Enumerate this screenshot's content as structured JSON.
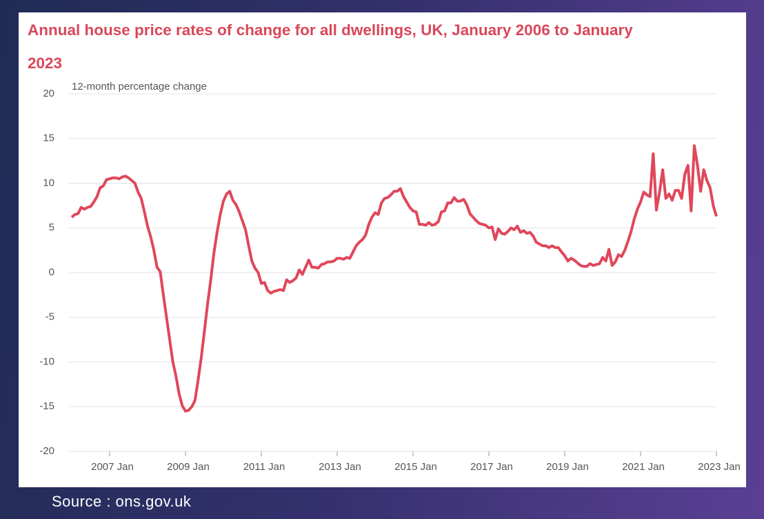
{
  "chart_data": {
    "type": "line",
    "title": "Annual house price rates of change for all dwellings, UK, January 2006 to January 2023",
    "y_label": "12-month percentage change",
    "source": "Source : ons.gov.uk",
    "x": [
      "2006 Jan",
      "2006 Feb",
      "2006 Mar",
      "2006 Apr",
      "2006 May",
      "2006 Jun",
      "2006 Jul",
      "2006 Aug",
      "2006 Sep",
      "2006 Oct",
      "2006 Nov",
      "2006 Dec",
      "2007 Jan",
      "2007 Feb",
      "2007 Mar",
      "2007 Apr",
      "2007 May",
      "2007 Jun",
      "2007 Jul",
      "2007 Aug",
      "2007 Sep",
      "2007 Oct",
      "2007 Nov",
      "2007 Dec",
      "2008 Jan",
      "2008 Feb",
      "2008 Mar",
      "2008 Apr",
      "2008 May",
      "2008 Jun",
      "2008 Jul",
      "2008 Aug",
      "2008 Sep",
      "2008 Oct",
      "2008 Nov",
      "2008 Dec",
      "2009 Jan",
      "2009 Feb",
      "2009 Mar",
      "2009 Apr",
      "2009 May",
      "2009 Jun",
      "2009 Jul",
      "2009 Aug",
      "2009 Sep",
      "2009 Oct",
      "2009 Nov",
      "2009 Dec",
      "2010 Jan",
      "2010 Feb",
      "2010 Mar",
      "2010 Apr",
      "2010 May",
      "2010 Jun",
      "2010 Jul",
      "2010 Aug",
      "2010 Sep",
      "2010 Oct",
      "2010 Nov",
      "2010 Dec",
      "2011 Jan",
      "2011 Feb",
      "2011 Mar",
      "2011 Apr",
      "2011 May",
      "2011 Jun",
      "2011 Jul",
      "2011 Aug",
      "2011 Sep",
      "2011 Oct",
      "2011 Nov",
      "2011 Dec",
      "2012 Jan",
      "2012 Feb",
      "2012 Mar",
      "2012 Apr",
      "2012 May",
      "2012 Jun",
      "2012 Jul",
      "2012 Aug",
      "2012 Sep",
      "2012 Oct",
      "2012 Nov",
      "2012 Dec",
      "2013 Jan",
      "2013 Feb",
      "2013 Mar",
      "2013 Apr",
      "2013 May",
      "2013 Jun",
      "2013 Jul",
      "2013 Aug",
      "2013 Sep",
      "2013 Oct",
      "2013 Nov",
      "2013 Dec",
      "2014 Jan",
      "2014 Feb",
      "2014 Mar",
      "2014 Apr",
      "2014 May",
      "2014 Jun",
      "2014 Jul",
      "2014 Aug",
      "2014 Sep",
      "2014 Oct",
      "2014 Nov",
      "2014 Dec",
      "2015 Jan",
      "2015 Feb",
      "2015 Mar",
      "2015 Apr",
      "2015 May",
      "2015 Jun",
      "2015 Jul",
      "2015 Aug",
      "2015 Sep",
      "2015 Oct",
      "2015 Nov",
      "2015 Dec",
      "2016 Jan",
      "2016 Feb",
      "2016 Mar",
      "2016 Apr",
      "2016 May",
      "2016 Jun",
      "2016 Jul",
      "2016 Aug",
      "2016 Sep",
      "2016 Oct",
      "2016 Nov",
      "2016 Dec",
      "2017 Jan",
      "2017 Feb",
      "2017 Mar",
      "2017 Apr",
      "2017 May",
      "2017 Jun",
      "2017 Jul",
      "2017 Aug",
      "2017 Sep",
      "2017 Oct",
      "2017 Nov",
      "2017 Dec",
      "2018 Jan",
      "2018 Feb",
      "2018 Mar",
      "2018 Apr",
      "2018 May",
      "2018 Jun",
      "2018 Jul",
      "2018 Aug",
      "2018 Sep",
      "2018 Oct",
      "2018 Nov",
      "2018 Dec",
      "2019 Jan",
      "2019 Feb",
      "2019 Mar",
      "2019 Apr",
      "2019 May",
      "2019 Jun",
      "2019 Jul",
      "2019 Aug",
      "2019 Sep",
      "2019 Oct",
      "2019 Nov",
      "2019 Dec",
      "2020 Jan",
      "2020 Feb",
      "2020 Mar",
      "2020 Apr",
      "2020 May",
      "2020 Jun",
      "2020 Jul",
      "2020 Aug",
      "2020 Sep",
      "2020 Oct",
      "2020 Nov",
      "2020 Dec",
      "2021 Jan",
      "2021 Feb",
      "2021 Mar",
      "2021 Apr",
      "2021 May",
      "2021 Jun",
      "2021 Jul",
      "2021 Aug",
      "2021 Sep",
      "2021 Oct",
      "2021 Nov",
      "2021 Dec",
      "2022 Jan",
      "2022 Feb",
      "2022 Mar",
      "2022 Apr",
      "2022 May",
      "2022 Jun",
      "2022 Jul",
      "2022 Aug",
      "2022 Sep",
      "2022 Oct",
      "2022 Nov",
      "2022 Dec",
      "2023 Jan"
    ],
    "series": [
      {
        "name": "UK",
        "color": "#e0475b",
        "values": [
          6.2,
          6.5,
          6.6,
          7.3,
          7.1,
          7.3,
          7.4,
          7.9,
          8.5,
          9.5,
          9.7,
          10.4,
          10.5,
          10.6,
          10.6,
          10.5,
          10.7,
          10.8,
          10.6,
          10.3,
          10.0,
          9.0,
          8.3,
          6.8,
          5.2,
          4.0,
          2.5,
          0.6,
          0.1,
          -2.5,
          -5.0,
          -7.5,
          -10.0,
          -11.6,
          -13.6,
          -14.9,
          -15.5,
          -15.4,
          -15.0,
          -14.3,
          -12.0,
          -9.5,
          -6.5,
          -3.5,
          -0.8,
          2.2,
          4.5,
          6.5,
          8.0,
          8.8,
          9.1,
          8.1,
          7.6,
          6.8,
          5.8,
          4.8,
          3.0,
          1.3,
          0.5,
          0.0,
          -1.2,
          -1.1,
          -2.0,
          -2.3,
          -2.1,
          -2.0,
          -1.9,
          -2.0,
          -0.8,
          -1.1,
          -0.9,
          -0.6,
          0.3,
          -0.2,
          0.6,
          1.4,
          0.6,
          0.6,
          0.5,
          0.9,
          1.0,
          1.2,
          1.2,
          1.3,
          1.6,
          1.6,
          1.5,
          1.7,
          1.6,
          2.3,
          3.0,
          3.4,
          3.7,
          4.2,
          5.4,
          6.2,
          6.7,
          6.5,
          7.8,
          8.3,
          8.4,
          8.7,
          9.1,
          9.1,
          9.4,
          8.5,
          7.9,
          7.3,
          6.9,
          6.8,
          5.4,
          5.4,
          5.3,
          5.6,
          5.3,
          5.4,
          5.7,
          6.8,
          6.9,
          7.8,
          7.8,
          8.4,
          8.0,
          8.0,
          8.2,
          7.6,
          6.6,
          6.2,
          5.8,
          5.5,
          5.4,
          5.3,
          5.0,
          5.1,
          3.7,
          4.9,
          4.4,
          4.3,
          4.6,
          5.0,
          4.8,
          5.2,
          4.5,
          4.7,
          4.4,
          4.5,
          4.1,
          3.4,
          3.2,
          3.0,
          3.0,
          2.8,
          3.0,
          2.8,
          2.8,
          2.3,
          1.9,
          1.3,
          1.6,
          1.4,
          1.1,
          0.8,
          0.7,
          0.7,
          1.0,
          0.8,
          0.9,
          1.0,
          1.7,
          1.3,
          2.6,
          0.8,
          1.2,
          2.0,
          1.8,
          2.5,
          3.5,
          4.6,
          6.0,
          7.1,
          7.9,
          9.0,
          8.7,
          8.5,
          13.3,
          7.0,
          9.0,
          11.5,
          8.3,
          8.8,
          8.1,
          9.2,
          9.2,
          8.3,
          11.0,
          12.0,
          6.9,
          14.2,
          12.0,
          9.1,
          11.5,
          10.3,
          9.5,
          7.5,
          6.3
        ]
      }
    ],
    "xticks": [
      "2007 Jan",
      "2009 Jan",
      "2011 Jan",
      "2013 Jan",
      "2015 Jan",
      "2017 Jan",
      "2019 Jan",
      "2021 Jan",
      "2023 Jan"
    ],
    "ylim": [
      -20,
      20
    ],
    "yticks": [
      20,
      15,
      10,
      5,
      0,
      -5,
      -10,
      -15,
      -20
    ],
    "grid": true
  }
}
